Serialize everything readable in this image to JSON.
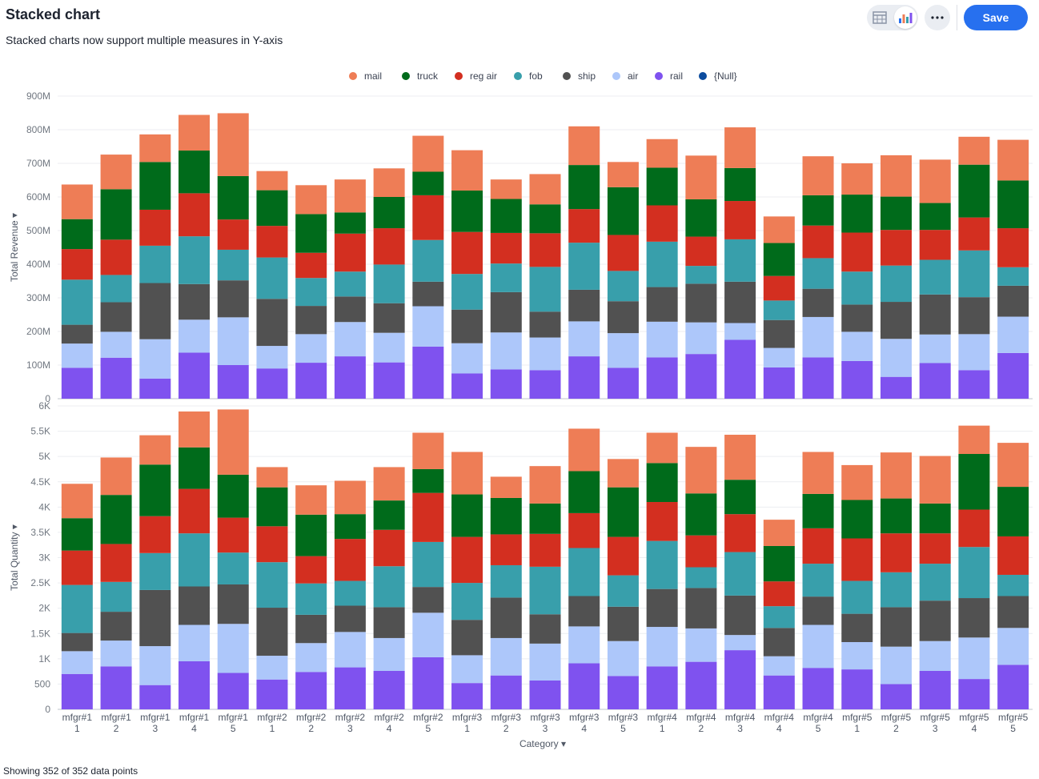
{
  "header": {
    "title": "Stacked chart",
    "subtitle": "Stacked charts now support multiple measures in Y-axis",
    "save_label": "Save",
    "table_view_icon": "table-icon",
    "chart_view_icon": "bar-chart-icon",
    "more_icon": "more-horizontal-icon"
  },
  "footer": {
    "status": "Showing 352 of 352 data points"
  },
  "colors": {
    "mail": "#ee7d56",
    "truck": "#006b1b",
    "reg air": "#d32f20",
    "fob": "#389fab",
    "ship": "#515151",
    "air": "#adc7fa",
    "rail": "#7f52ef",
    "{Null}": "#0b4b9e"
  },
  "chart_data": {
    "type": "bar",
    "stacked": true,
    "legend": [
      "mail",
      "truck",
      "reg air",
      "fob",
      "ship",
      "air",
      "rail",
      "{Null}"
    ],
    "legend_position": "top-center",
    "xlabel": "Category",
    "categories": [
      "mfgr#11",
      "mfgr#12",
      "mfgr#13",
      "mfgr#14",
      "mfgr#15",
      "mfgr#21",
      "mfgr#22",
      "mfgr#23",
      "mfgr#24",
      "mfgr#25",
      "mfgr#31",
      "mfgr#32",
      "mfgr#33",
      "mfgr#34",
      "mfgr#35",
      "mfgr#41",
      "mfgr#42",
      "mfgr#43",
      "mfgr#44",
      "mfgr#45",
      "mfgr#51",
      "mfgr#52",
      "mfgr#53",
      "mfgr#54",
      "mfgr#55"
    ],
    "panels": [
      {
        "ylabel": "Total Revenue",
        "ylim": [
          0,
          900
        ],
        "yticks": [
          0,
          100,
          200,
          300,
          400,
          500,
          600,
          700,
          800,
          900
        ],
        "ytick_labels": [
          "0",
          "100M",
          "200M",
          "300M",
          "400M",
          "500M",
          "600M",
          "700M",
          "800M",
          "900M"
        ],
        "unit": "M",
        "series": [
          {
            "name": "rail",
            "values": [
              92,
              122,
              60,
              137,
              100,
              90,
              107,
              126,
              108,
              155,
              75,
              87,
              85,
              126,
              92,
              123,
              133,
              175,
              93,
              123,
              112,
              65,
              106,
              85,
              136
            ]
          },
          {
            "name": "air",
            "values": [
              72,
              77,
              117,
              98,
              142,
              67,
              85,
              102,
              88,
              120,
              90,
              110,
              97,
              104,
              103,
              106,
              94,
              50,
              58,
              120,
              87,
              113,
              85,
              107,
              108
            ]
          },
          {
            "name": "ship",
            "values": [
              56,
              88,
              167,
              106,
              110,
              140,
              84,
              76,
              88,
              73,
              100,
              120,
              77,
              94,
              95,
              103,
              115,
              123,
              83,
              84,
              81,
              110,
              119,
              110,
              92
            ]
          },
          {
            "name": "fob",
            "values": [
              134,
              81,
              111,
              142,
              91,
              123,
              83,
              74,
              115,
              124,
              106,
              85,
              133,
              140,
              90,
              135,
              53,
              126,
              58,
              91,
              98,
              108,
              103,
              139,
              55
            ]
          },
          {
            "name": "reg air",
            "values": [
              91,
              105,
              107,
              128,
              90,
              94,
              75,
              113,
              108,
              133,
              125,
              91,
              100,
              100,
              107,
              108,
              87,
              114,
              73,
              97,
              116,
              106,
              89,
              98,
              116
            ]
          },
          {
            "name": "truck",
            "values": [
              89,
              150,
              142,
              127,
              129,
              106,
              115,
              63,
              93,
              70,
              123,
              101,
              86,
              131,
              142,
              112,
              111,
              98,
              98,
              90,
              113,
              99,
              80,
              157,
              142
            ]
          },
          {
            "name": "mail",
            "values": [
              103,
              103,
              82,
              106,
              187,
              57,
              86,
              98,
              85,
              107,
              120,
              58,
              90,
              115,
              75,
              85,
              130,
              121,
              79,
              116,
              93,
              123,
              129,
              83,
              121
            ]
          }
        ]
      },
      {
        "ylabel": "Total Quantity",
        "ylim": [
          0,
          6000
        ],
        "yticks": [
          0,
          500,
          1000,
          1500,
          2000,
          2500,
          3000,
          3500,
          4000,
          4500,
          5000,
          5500,
          6000
        ],
        "ytick_labels": [
          "0",
          "500",
          "1K",
          "1.5K",
          "2K",
          "2.5K",
          "3K",
          "3.5K",
          "4K",
          "4.5K",
          "5K",
          "5.5K",
          "6K"
        ],
        "unit": "",
        "series": [
          {
            "name": "rail",
            "values": [
              700,
              850,
              480,
              950,
              720,
              590,
              740,
              830,
              760,
              1030,
              520,
              670,
              570,
              910,
              660,
              850,
              940,
              1170,
              670,
              820,
              790,
              500,
              760,
              600,
              880
            ]
          },
          {
            "name": "air",
            "values": [
              450,
              510,
              770,
              720,
              970,
              470,
              570,
              700,
              650,
              880,
              550,
              740,
              730,
              730,
              690,
              780,
              660,
              300,
              380,
              850,
              540,
              740,
              590,
              820,
              730
            ]
          },
          {
            "name": "ship",
            "values": [
              360,
              570,
              1110,
              760,
              780,
              950,
              560,
              520,
              610,
              510,
              700,
              800,
              580,
              600,
              680,
              750,
              800,
              780,
              560,
              560,
              560,
              780,
              800,
              780,
              630
            ]
          },
          {
            "name": "fob",
            "values": [
              950,
              590,
              730,
              1050,
              630,
              900,
              620,
              490,
              810,
              890,
              730,
              640,
              940,
              950,
              620,
              950,
              410,
              860,
              430,
              650,
              650,
              690,
              730,
              1010,
              420
            ]
          },
          {
            "name": "reg air",
            "values": [
              680,
              750,
              730,
              880,
              690,
              710,
              540,
              830,
              720,
              970,
              910,
              610,
              650,
              690,
              760,
              770,
              630,
              750,
              490,
              700,
              840,
              770,
              600,
              740,
              760
            ]
          },
          {
            "name": "truck",
            "values": [
              640,
              970,
              1020,
              820,
              850,
              770,
              820,
              490,
              580,
              470,
              840,
              720,
              600,
              830,
              980,
              770,
              830,
              680,
              700,
              680,
              760,
              690,
              590,
              1100,
              980
            ]
          },
          {
            "name": "mail",
            "values": [
              680,
              740,
              580,
              710,
              1290,
              400,
              580,
              660,
              660,
              720,
              840,
              420,
              740,
              840,
              560,
              600,
              920,
              890,
              520,
              830,
              690,
              910,
              940,
              560,
              870
            ]
          }
        ]
      }
    ]
  }
}
